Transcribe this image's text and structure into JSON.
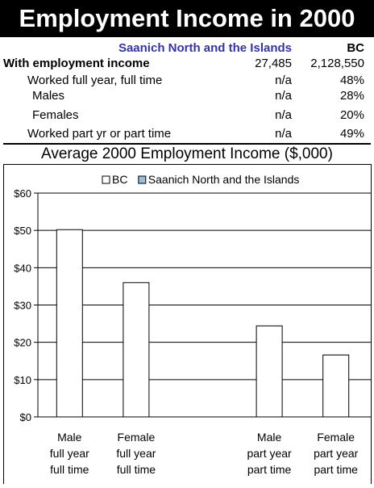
{
  "header": {
    "title": "Employment Income in 2000"
  },
  "table": {
    "col_region": "Saanich North and the Islands",
    "col_bc": "BC",
    "rows": [
      {
        "label": "With employment income",
        "region": "27,485",
        "bc": "2,128,550"
      },
      {
        "label": "Worked full year, full time",
        "region": "n/a",
        "bc": "48%"
      },
      {
        "label": "Males",
        "region": "n/a",
        "bc": "28%"
      },
      {
        "label": "Females",
        "region": "n/a",
        "bc": "20%"
      },
      {
        "label": "Worked part yr or part time",
        "region": "n/a",
        "bc": "49%"
      }
    ]
  },
  "chart_data": {
    "type": "bar",
    "title": "Average 2000 Employment Income ($,000)",
    "categories": [
      [
        "Male",
        "full year",
        "full time"
      ],
      [
        "Female",
        "full year",
        "full time"
      ],
      [
        "",
        "",
        ""
      ],
      [
        "Male",
        "part year",
        "part time"
      ],
      [
        "Female",
        "part year",
        "part time"
      ]
    ],
    "series": [
      {
        "name": "BC",
        "values": [
          50.2,
          36.0,
          null,
          24.4,
          16.6
        ],
        "color": "#ffffff"
      },
      {
        "name": "Saanich North and the Islands",
        "values": [
          null,
          null,
          null,
          null,
          null
        ],
        "color": "#99bbdd"
      }
    ],
    "y_ticks": [
      "$0",
      "$10",
      "$20",
      "$30",
      "$40",
      "$50",
      "$60"
    ],
    "ylim": [
      0,
      60
    ],
    "grid": true,
    "legend": "top-right"
  }
}
